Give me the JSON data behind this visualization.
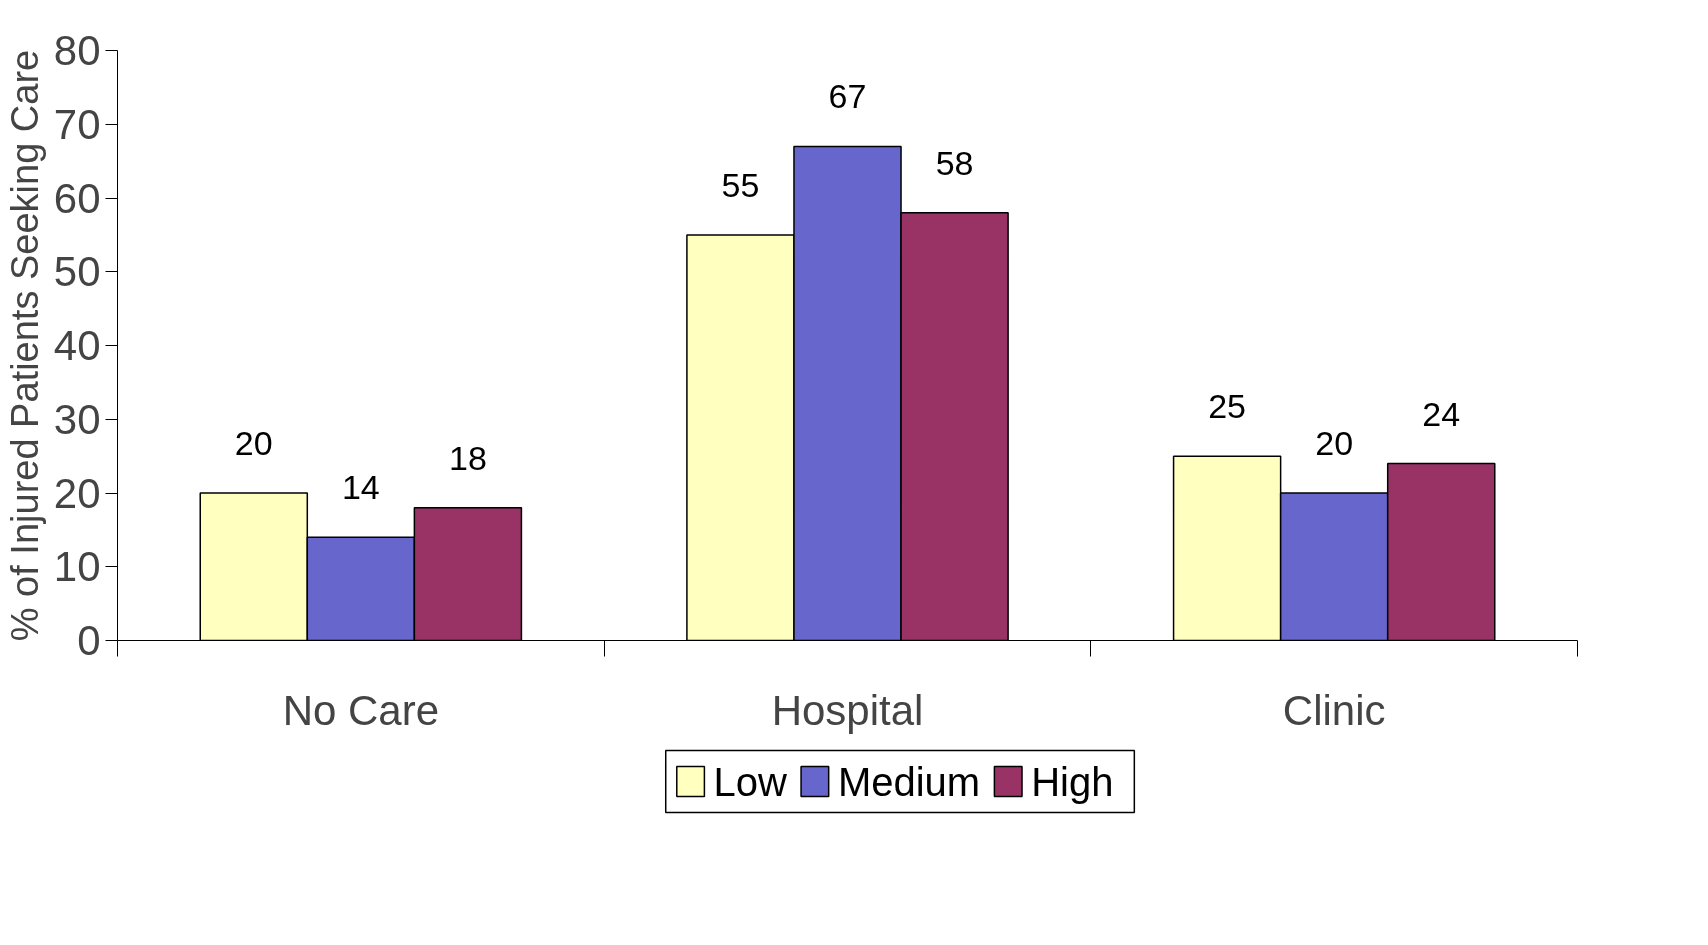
{
  "chart_data": {
    "type": "bar",
    "ylabel": "% of Injured Patients Seeking Care",
    "categories": [
      "No Care",
      "Hospital",
      "Clinic"
    ],
    "series": [
      {
        "name": "Low",
        "color": "#ffffc0",
        "values": [
          20,
          55,
          25
        ]
      },
      {
        "name": "Medium",
        "color": "#6666cc",
        "values": [
          14,
          67,
          20
        ]
      },
      {
        "name": "High",
        "color": "#993366",
        "values": [
          18,
          58,
          24
        ]
      }
    ],
    "ylim": [
      0,
      80
    ],
    "yticks": [
      0,
      10,
      20,
      30,
      40,
      50,
      60,
      70,
      80
    ],
    "grid": false,
    "legend": "bottom",
    "data_labels": true
  }
}
